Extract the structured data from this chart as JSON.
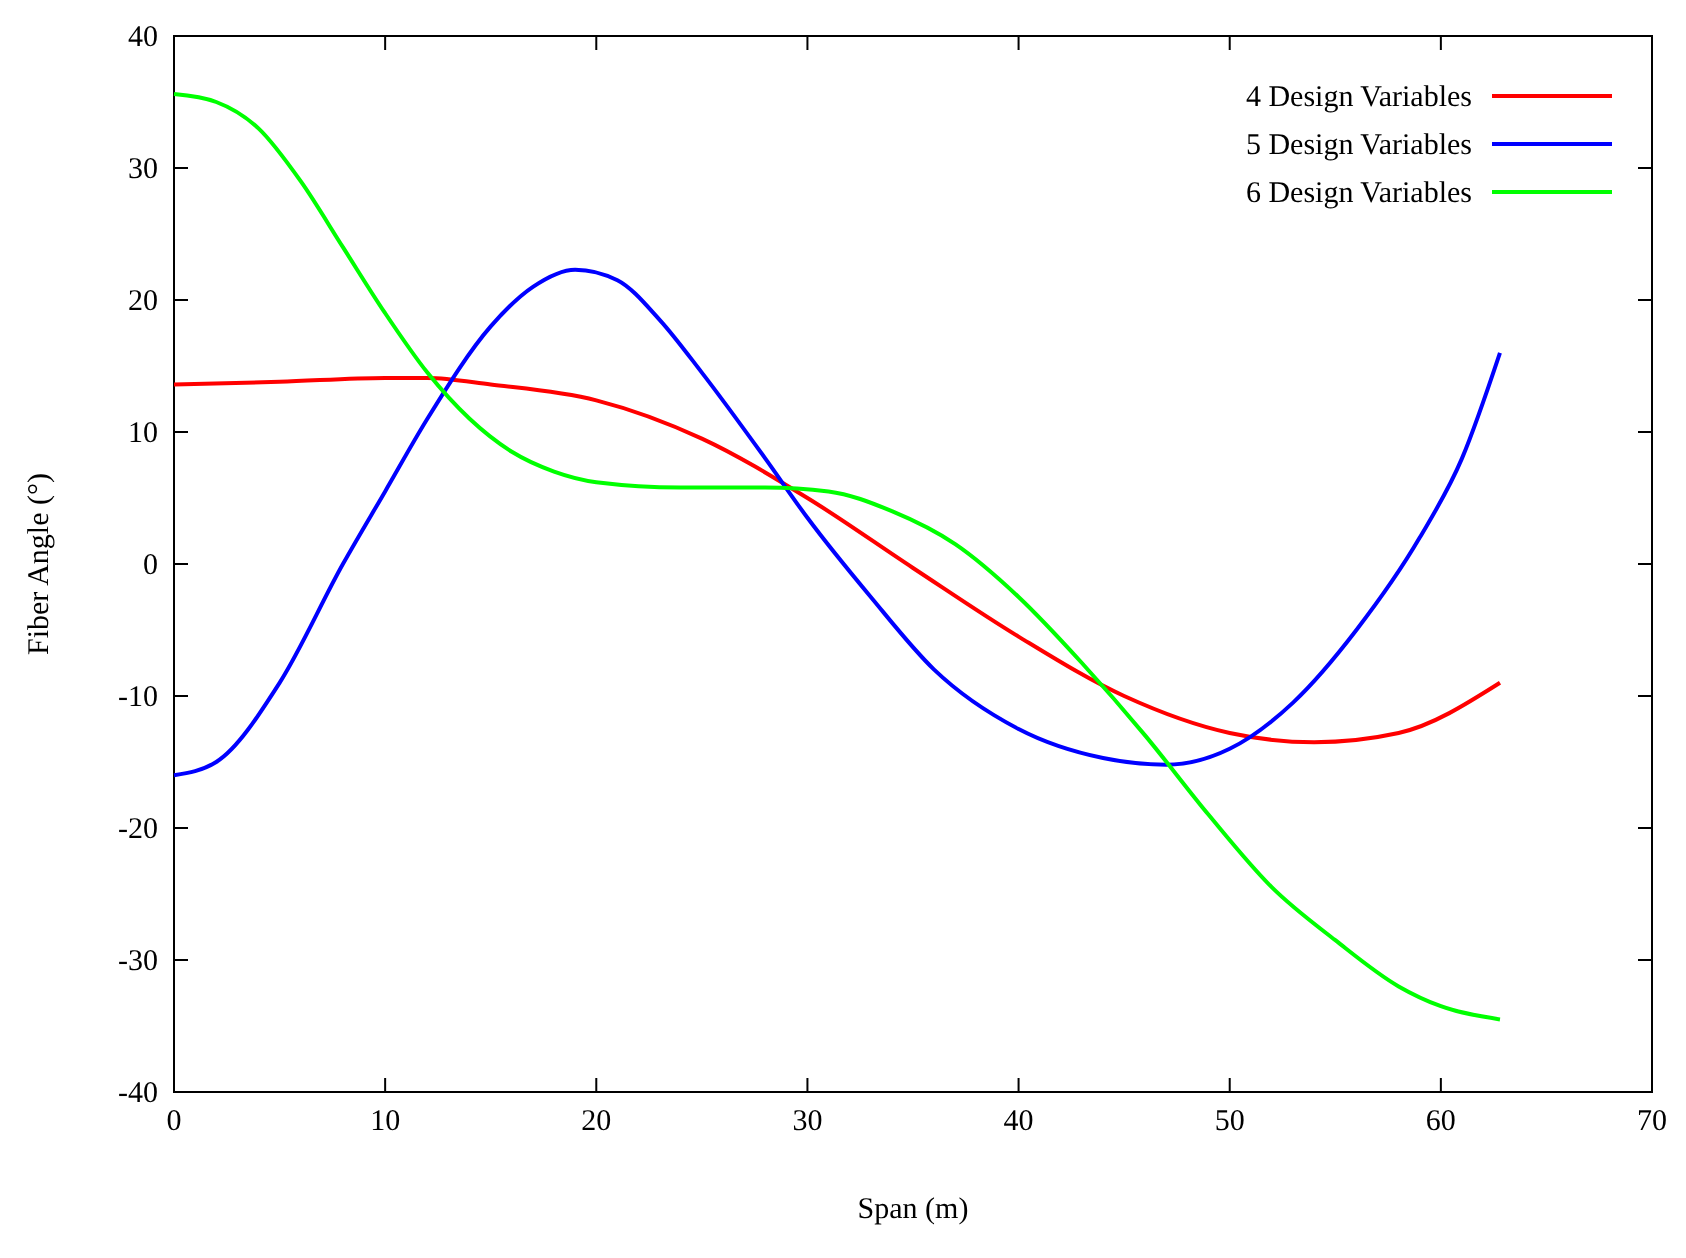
{
  "chart_data": {
    "type": "line",
    "xlabel": "Span (m)",
    "ylabel": "Fiber Angle (°)",
    "xlim": [
      0,
      70
    ],
    "xticks": [
      0,
      10,
      20,
      30,
      40,
      50,
      60,
      70
    ],
    "ylim": [
      -40,
      40
    ],
    "yticks": [
      -40,
      -30,
      -20,
      -10,
      0,
      10,
      20,
      30,
      40
    ],
    "grid": false,
    "legend": "top right",
    "line_style": "solid",
    "marker": "none",
    "series": [
      {
        "name": "4 Design Variables",
        "color": "#ff0000",
        "x": [
          0,
          5,
          10,
          12,
          15,
          20,
          25,
          30,
          35,
          40,
          45,
          50,
          54,
          58,
          62.8
        ],
        "values": [
          13.6,
          13.8,
          14.1,
          14.1,
          13.6,
          12.4,
          9.5,
          5,
          -0.3,
          -5.5,
          -10,
          -12.8,
          -13.5,
          -12.8,
          -9
        ]
      },
      {
        "name": "5 Design Variables",
        "color": "#0000ff",
        "x": [
          0,
          2,
          5,
          8,
          10,
          12,
          15,
          17,
          19,
          21,
          23,
          25,
          28,
          30,
          33,
          36,
          40,
          44,
          47,
          50,
          53,
          56,
          59,
          61,
          62.8
        ],
        "values": [
          -16,
          -15,
          -9,
          0,
          5.5,
          11,
          18,
          21,
          22.3,
          21.5,
          18.5,
          14.5,
          8,
          3.5,
          -2.5,
          -8,
          -12.5,
          -14.7,
          -15.2,
          -14,
          -10.5,
          -5,
          2,
          8,
          16
        ]
      },
      {
        "name": "6 Design Variables",
        "color": "#00ff00",
        "x": [
          0,
          2,
          4,
          6,
          8,
          10,
          12,
          14,
          16,
          18,
          20,
          24,
          28,
          31,
          34,
          37,
          40,
          43,
          46,
          49,
          52,
          55,
          58,
          60,
          62.8
        ],
        "values": [
          35.6,
          35,
          33,
          29,
          24,
          19,
          14.5,
          11,
          8.5,
          7,
          6.2,
          5.8,
          5.8,
          5.5,
          4,
          1.5,
          -2.5,
          -7.5,
          -13,
          -19,
          -24.5,
          -28.5,
          -32,
          -33.5,
          -34.5
        ]
      }
    ]
  }
}
